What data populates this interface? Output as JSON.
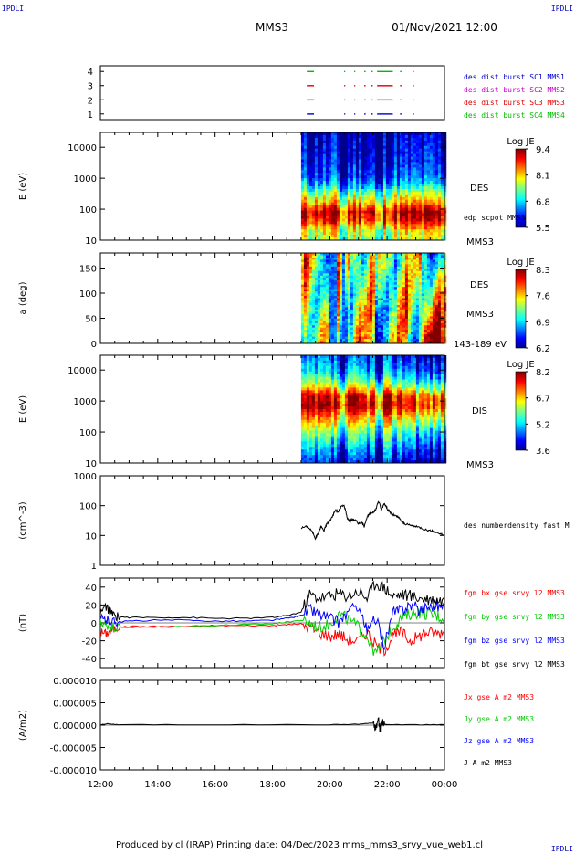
{
  "header": {
    "corner_label": "IPDLI",
    "spacecraft": "MMS3",
    "datetime": "01/Nov/2021 12:00"
  },
  "footer": {
    "text": "Produced by cl (IRAP)   Printing date: 04/Dec/2023   mms_mms3_srvy_vue_web1.cl"
  },
  "colors": {
    "mms1": "#0000cc",
    "mms2": "#cc00cc",
    "mms3": "#dd0000",
    "mms4": "#00bb00",
    "bx": "#ff0000",
    "by": "#00cc00",
    "bz": "#0000ff",
    "bt": "#000000"
  },
  "x_axis": {
    "start_hour": 12,
    "end_hour": 24,
    "tick_labels": [
      "12:00",
      "14:00",
      "16:00",
      "18:00",
      "20:00",
      "22:00",
      "00:00"
    ]
  },
  "chart_data": [
    {
      "id": "burst",
      "type": "scatter",
      "yticks": [
        "1",
        "2",
        "3",
        "4"
      ],
      "ylim": [
        0.6,
        4.4
      ],
      "legend": [
        {
          "label": "des dist burst SC1 MMS1",
          "color_key": "mms1"
        },
        {
          "label": "des dist burst SC2 MMS2",
          "color_key": "mms2"
        },
        {
          "label": "des dist burst SC3 MMS3",
          "color_key": "mms3"
        },
        {
          "label": "des dist burst SC4 MMS4",
          "color_key": "mms4"
        }
      ],
      "series": [
        {
          "level": 4,
          "color_key": "mms4",
          "intervals": [
            [
              19.2,
              19.45
            ],
            [
              20.5,
              20.52
            ],
            [
              20.85,
              20.88
            ],
            [
              21.2,
              21.25
            ],
            [
              21.45,
              21.5
            ],
            [
              21.65,
              22.2
            ],
            [
              22.45,
              22.5
            ],
            [
              22.9,
              22.92
            ]
          ]
        },
        {
          "level": 3,
          "color_key": "mms3",
          "intervals": [
            [
              19.2,
              19.45
            ],
            [
              20.5,
              20.52
            ],
            [
              20.85,
              20.88
            ],
            [
              21.2,
              21.25
            ],
            [
              21.45,
              21.5
            ],
            [
              21.65,
              22.2
            ],
            [
              22.45,
              22.5
            ],
            [
              22.9,
              22.92
            ]
          ]
        },
        {
          "level": 2,
          "color_key": "mms2",
          "intervals": [
            [
              19.2,
              19.45
            ],
            [
              20.5,
              20.52
            ],
            [
              20.85,
              20.88
            ],
            [
              21.2,
              21.25
            ],
            [
              21.45,
              21.5
            ],
            [
              21.65,
              22.2
            ],
            [
              22.45,
              22.5
            ],
            [
              22.9,
              22.92
            ]
          ]
        },
        {
          "level": 1,
          "color_key": "mms1",
          "intervals": [
            [
              19.2,
              19.45
            ],
            [
              20.5,
              20.52
            ],
            [
              20.85,
              20.88
            ],
            [
              21.2,
              21.25
            ],
            [
              21.45,
              21.5
            ],
            [
              21.65,
              22.2
            ],
            [
              22.45,
              22.5
            ],
            [
              22.9,
              22.92
            ]
          ]
        }
      ]
    },
    {
      "id": "des-energy",
      "type": "heatmap",
      "ylabel": "E (eV)",
      "yscale": "log",
      "ylim": [
        10,
        30000
      ],
      "yticks": [
        10,
        100,
        1000,
        10000
      ],
      "ytick_labels": [
        "10",
        "100",
        "1000",
        "10000"
      ],
      "data_start_hour": 19.0,
      "labels": [
        "DES",
        "edp scpot MMS3",
        "MMS3"
      ],
      "colorbar": {
        "title": "Log JE",
        "range": [
          5.5,
          9.4
        ],
        "ticks": [
          "9.4",
          "8.1",
          "6.8",
          "5.5"
        ]
      },
      "profile": [
        [
          10,
          0.55
        ],
        [
          20,
          0.62
        ],
        [
          45,
          0.88
        ],
        [
          80,
          0.93
        ],
        [
          150,
          0.7
        ],
        [
          300,
          0.55
        ],
        [
          500,
          0.35
        ],
        [
          1000,
          0.2
        ],
        [
          3000,
          0.12
        ],
        [
          10000,
          0.08
        ],
        [
          30000,
          0.05
        ]
      ]
    },
    {
      "id": "des-pitch",
      "type": "heatmap",
      "ylabel": "a (deg)",
      "yscale": "linear",
      "ylim": [
        0,
        180
      ],
      "yticks": [
        0,
        50,
        100,
        150
      ],
      "ytick_labels": [
        "0",
        "50",
        "100",
        "150"
      ],
      "data_start_hour": 19.0,
      "labels": [
        "DES",
        "MMS3",
        "143-189 eV"
      ],
      "colorbar": {
        "title": "Log JE",
        "range": [
          6.2,
          8.3
        ],
        "ticks": [
          "8.3",
          "7.6",
          "6.9",
          "6.2"
        ]
      }
    },
    {
      "id": "dis-energy",
      "type": "heatmap",
      "ylabel": "E (eV)",
      "yscale": "log",
      "ylim": [
        10,
        30000
      ],
      "yticks": [
        10,
        100,
        1000,
        10000
      ],
      "ytick_labels": [
        "10",
        "100",
        "1000",
        "10000"
      ],
      "data_start_hour": 19.0,
      "labels": [
        "DIS",
        "MMS3"
      ],
      "colorbar": {
        "title": "Log JE",
        "range": [
          3.6,
          8.2
        ],
        "ticks": [
          "8.2",
          "6.7",
          "5.2",
          "3.6"
        ]
      },
      "profile": [
        [
          10,
          0.1
        ],
        [
          30,
          0.25
        ],
        [
          100,
          0.45
        ],
        [
          300,
          0.7
        ],
        [
          700,
          0.92
        ],
        [
          1500,
          0.85
        ],
        [
          3000,
          0.55
        ],
        [
          8000,
          0.3
        ],
        [
          30000,
          0.15
        ]
      ]
    },
    {
      "id": "density",
      "type": "line",
      "ylabel": "(cm^-3)",
      "yscale": "log",
      "ylim": [
        1,
        1000
      ],
      "yticks": [
        1,
        10,
        100,
        1000
      ],
      "ytick_labels": [
        "1",
        "10",
        "100",
        "1000"
      ],
      "legend": [
        {
          "label": "des numberdensity fast M",
          "color_key": "bt"
        }
      ],
      "series": [
        {
          "name": "des numberdensity fast M",
          "color_key": "bt",
          "x": [
            19.0,
            19.2,
            19.35,
            19.5,
            19.6,
            19.7,
            19.8,
            19.9,
            20.0,
            20.1,
            20.2,
            20.3,
            20.4,
            20.5,
            20.6,
            20.7,
            20.8,
            20.9,
            21.0,
            21.1,
            21.2,
            21.3,
            21.4,
            21.5,
            21.6,
            21.7,
            21.8,
            21.9,
            22.0,
            22.1,
            22.2,
            22.3,
            22.4,
            22.5,
            22.6,
            22.8,
            23.0,
            23.2,
            23.4,
            23.6,
            23.8,
            24.0
          ],
          "y": [
            18,
            20,
            15,
            8,
            12,
            20,
            14,
            25,
            30,
            45,
            70,
            60,
            95,
            100,
            40,
            30,
            35,
            32,
            25,
            28,
            20,
            40,
            55,
            60,
            70,
            140,
            70,
            120,
            80,
            60,
            50,
            45,
            40,
            30,
            25,
            22,
            20,
            18,
            15,
            14,
            12,
            10
          ]
        }
      ]
    },
    {
      "id": "bfield",
      "type": "line",
      "ylabel": "(nT)",
      "ylim": [
        -50,
        50
      ],
      "yticks": [
        -40,
        -20,
        0,
        20,
        40
      ],
      "ytick_labels": [
        "-40",
        "-20",
        "0",
        "20",
        "40"
      ],
      "legend": [
        {
          "label": "fgm bx gse srvy l2 MMS3",
          "color_key": "bx"
        },
        {
          "label": "fgm by gse srvy l2 MMS3",
          "color_key": "by"
        },
        {
          "label": "fgm bz gse srvy l2 MMS3",
          "color_key": "bz"
        },
        {
          "label": "fgm bt gse srvy l2 MMS3",
          "color_key": "bt"
        }
      ],
      "series": [
        {
          "name": "fgm bx gse srvy l2 MMS3",
          "color_key": "bx",
          "x": [
            12.0,
            12.2,
            12.4,
            12.6,
            13.0,
            14.0,
            15.0,
            16.0,
            17.0,
            18.0,
            18.5,
            19.0,
            19.3,
            19.6,
            20.0,
            20.3,
            20.6,
            21.0,
            21.3,
            21.6,
            21.9,
            22.2,
            22.5,
            22.8,
            23.1,
            23.4,
            23.7,
            24.0
          ],
          "y": [
            -10,
            -12,
            -8,
            -5,
            -4,
            -4,
            -4,
            -3,
            -3,
            -3,
            -2,
            -1,
            -5,
            -10,
            -15,
            -12,
            -18,
            -20,
            -10,
            -25,
            -30,
            -15,
            -10,
            -20,
            -15,
            -10,
            -12,
            -10
          ]
        },
        {
          "name": "fgm by gse srvy l2 MMS3",
          "color_key": "by",
          "x": [
            12.0,
            12.2,
            12.4,
            12.6,
            13.0,
            14.0,
            15.0,
            16.0,
            17.0,
            18.0,
            18.5,
            19.0,
            19.3,
            19.6,
            20.0,
            20.3,
            20.6,
            21.0,
            21.3,
            21.6,
            21.9,
            22.2,
            22.5,
            22.8,
            23.1,
            23.4,
            23.7,
            24.0
          ],
          "y": [
            0,
            -3,
            -4,
            -5,
            -5,
            -5,
            -4,
            -3,
            -2,
            -1,
            1,
            3,
            0,
            -5,
            -2,
            10,
            5,
            -5,
            -15,
            -35,
            -20,
            -5,
            5,
            10,
            12,
            10,
            8,
            5
          ]
        },
        {
          "name": "fgm bz gse srvy l2 MMS3",
          "color_key": "bz",
          "x": [
            12.0,
            12.2,
            12.4,
            12.6,
            13.0,
            14.0,
            15.0,
            16.0,
            17.0,
            18.0,
            18.5,
            19.0,
            19.3,
            19.6,
            20.0,
            20.3,
            20.6,
            21.0,
            21.3,
            21.6,
            21.9,
            22.2,
            22.5,
            22.8,
            23.1,
            23.4,
            23.7,
            24.0
          ],
          "y": [
            5,
            3,
            2,
            1,
            2,
            3,
            3,
            2,
            2,
            3,
            5,
            8,
            15,
            10,
            5,
            0,
            10,
            20,
            -10,
            5,
            -25,
            10,
            15,
            20,
            15,
            18,
            20,
            15
          ]
        },
        {
          "name": "fgm bt gse srvy l2 MMS3",
          "color_key": "bt",
          "x": [
            12.0,
            12.2,
            12.4,
            12.6,
            13.0,
            14.0,
            15.0,
            16.0,
            17.0,
            18.0,
            18.5,
            19.0,
            19.3,
            19.6,
            20.0,
            20.3,
            20.6,
            21.0,
            21.3,
            21.6,
            21.9,
            22.2,
            22.5,
            22.8,
            23.1,
            23.4,
            23.7,
            24.0
          ],
          "y": [
            12,
            18,
            10,
            7,
            6,
            6,
            6,
            5,
            5,
            6,
            8,
            12,
            32,
            28,
            30,
            33,
            30,
            35,
            28,
            45,
            40,
            30,
            32,
            30,
            28,
            27,
            26,
            25
          ]
        }
      ]
    },
    {
      "id": "current",
      "type": "line",
      "ylabel": "(A/m2)",
      "ylim": [
        -1e-05,
        1e-05
      ],
      "yticks": [
        -1e-05,
        -5e-06,
        0,
        5e-06,
        1e-05
      ],
      "ytick_labels": [
        "-0.000010",
        "-0.000005",
        "0.000000",
        "0.000005",
        "0.000010"
      ],
      "legend": [
        {
          "label": "Jx gse A m2 MMS3",
          "color_key": "bx"
        },
        {
          "label": "Jy gse A m2 MMS3",
          "color_key": "by"
        },
        {
          "label": "Jz gse A m2 MMS3",
          "color_key": "bz"
        },
        {
          "label": "J A m2 MMS3",
          "color_key": "bt"
        }
      ],
      "series": [
        {
          "name": "J A m2 MMS3",
          "color_key": "bt",
          "x": [
            12.0,
            12.3,
            12.6,
            16.0,
            20.0,
            21.0,
            21.5,
            21.6,
            21.7,
            21.75,
            21.8,
            21.9,
            22.0,
            23.0,
            24.0
          ],
          "y": [
            1e-07,
            3e-07,
            1e-07,
            1e-07,
            1e-07,
            2e-07,
            5e-07,
            -8e-07,
            1.5e-06,
            -1.2e-06,
            8e-07,
            2e-07,
            1e-07,
            1e-07,
            1e-07
          ]
        }
      ]
    }
  ]
}
